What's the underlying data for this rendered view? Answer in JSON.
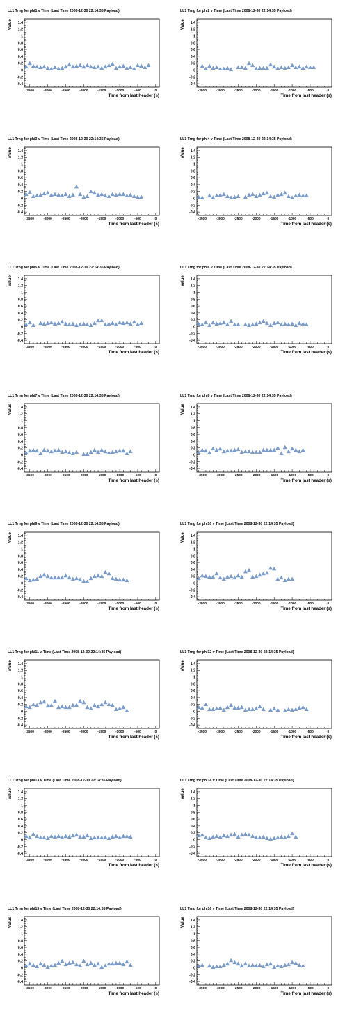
{
  "common": {
    "ylabel": "Value",
    "xlabel": "Time from last header (s)",
    "xticks": [
      -3500,
      -3000,
      -2500,
      -2000,
      -1500,
      -1000,
      -500,
      0
    ],
    "xtick_labels": [
      "-3500",
      "-3000",
      "-2500",
      "-2000",
      "-1500",
      "-1000",
      "-500",
      "0"
    ],
    "yticks": [
      -0.4,
      -0.2,
      0,
      0.2,
      0.4,
      0.6,
      0.8,
      1,
      1.2,
      1.4
    ],
    "ytick_labels": [
      "-0.4",
      "-0.2",
      "0",
      "0.2",
      "0.4",
      "0.6",
      "0.8",
      "1",
      "1.2",
      "1.4"
    ],
    "xlim": [
      -3650,
      100
    ],
    "ylim": [
      -0.5,
      1.5
    ],
    "marker_color": "#7b9cc8"
  },
  "x": [
    -3600,
    -3500,
    -3400,
    -3300,
    -3200,
    -3100,
    -3000,
    -2900,
    -2800,
    -2700,
    -2600,
    -2500,
    -2400,
    -2300,
    -2200,
    -2100,
    -2000,
    -1900,
    -1800,
    -1700,
    -1600,
    -1500,
    -1400,
    -1300,
    -1200,
    -1100,
    -1000,
    -900,
    -800,
    -700,
    -600,
    -500,
    -400,
    -300,
    -200,
    -100,
    0
  ],
  "chart_data": [
    {
      "type": "scatter",
      "title": "LL1 Trng for phi1 v Time (Last Time 2008-12-30 22:14:35 Payload)",
      "values": [
        0.1,
        0.2,
        0.12,
        0.1,
        0.08,
        0.1,
        0.06,
        0.04,
        0.08,
        0.04,
        0.06,
        0.1,
        0.16,
        0.1,
        0.12,
        0.14,
        0.1,
        0.14,
        0.1,
        0.08,
        0.1,
        0.06,
        0.1,
        0.14,
        0.18,
        0.06,
        0.1,
        0.12,
        0.06,
        0.08,
        0.04,
        0.14,
        0.12,
        0.08,
        0.14,
        null,
        null
      ]
    },
    {
      "type": "scatter",
      "title": "LL1 Trng for phi2 v Time (Last Time 2008-12-30 22:14:35 Payload)",
      "values": [
        null,
        0.12,
        0.04,
        0.12,
        0.06,
        0.08,
        0.04,
        0.04,
        0.06,
        0.02,
        null,
        0.08,
        0.08,
        0.06,
        0.2,
        0.14,
        0.04,
        0.06,
        0.06,
        0.06,
        0.16,
        0.1,
        0.06,
        0.08,
        0.06,
        0.08,
        0.14,
        0.08,
        0.1,
        0.06,
        0.1,
        0.08,
        0.08,
        null,
        null,
        null,
        null
      ]
    },
    {
      "type": "scatter",
      "title": "LL1 Trng for phi3 v Time (Last Time 2008-12-30 22:14:35 Payload)",
      "values": [
        0.12,
        0.18,
        0.06,
        0.08,
        0.1,
        0.14,
        0.16,
        0.1,
        0.12,
        0.1,
        0.08,
        0.12,
        0.06,
        0.1,
        0.34,
        0.12,
        0.04,
        0.06,
        0.2,
        0.16,
        0.1,
        0.12,
        0.08,
        0.06,
        0.12,
        0.1,
        0.12,
        0.12,
        0.08,
        0.1,
        0.06,
        0.04,
        0.04,
        null,
        null,
        null,
        null
      ]
    },
    {
      "type": "scatter",
      "title": "LL1 Trng for phi4 v Time (Last Time 2008-12-30 22:14:35 Payload)",
      "values": [
        0.04,
        0.02,
        null,
        0.08,
        0.02,
        0.08,
        0.1,
        0.12,
        0.06,
        0.02,
        0.04,
        0.06,
        null,
        0.04,
        0.1,
        0.12,
        0.06,
        0.1,
        0.14,
        0.16,
        0.06,
        0.04,
        0.1,
        0.12,
        0.16,
        0.06,
        0.02,
        0.08,
        0.1,
        0.08,
        0.08,
        null,
        null,
        null,
        null,
        null,
        null
      ]
    },
    {
      "type": "scatter",
      "title": "LL1 Trng for phi5 v Time (Last Time 2008-12-30 22:14:35 Payload)",
      "values": [
        0.06,
        0.12,
        0.04,
        null,
        0.1,
        0.08,
        0.1,
        0.12,
        0.08,
        0.1,
        0.14,
        0.08,
        0.06,
        0.08,
        0.04,
        0.06,
        0.08,
        0.06,
        0.04,
        0.1,
        0.18,
        0.18,
        0.06,
        0.08,
        0.1,
        0.06,
        0.12,
        0.1,
        0.12,
        0.08,
        0.14,
        0.06,
        0.1,
        null,
        null,
        null,
        null
      ]
    },
    {
      "type": "scatter",
      "title": "LL1 Trng for phi6 v Time (Last Time 2008-12-30 22:14:35 Payload)",
      "values": [
        0.08,
        0.06,
        0.12,
        0.04,
        0.12,
        0.08,
        0.1,
        0.12,
        0.06,
        0.16,
        0.06,
        0.06,
        null,
        0.06,
        0.04,
        0.06,
        0.08,
        0.12,
        0.16,
        0.1,
        0.04,
        0.1,
        0.12,
        0.06,
        0.08,
        0.06,
        0.08,
        0.04,
        0.1,
        0.08,
        0.06,
        null,
        null,
        null,
        null,
        null,
        null
      ]
    },
    {
      "type": "scatter",
      "title": "LL1 Trng for phi7 v Time (Last Time 2008-12-30 22:14:35 Payload)",
      "values": [
        0.06,
        0.12,
        0.14,
        0.12,
        0.04,
        0.14,
        0.12,
        0.1,
        0.12,
        0.14,
        0.08,
        0.1,
        0.06,
        0.04,
        0.08,
        null,
        0.02,
        0.02,
        0.08,
        0.14,
        0.08,
        0.14,
        0.1,
        0.06,
        0.08,
        0.1,
        0.12,
        0.12,
        0.04,
        0.1,
        null,
        null,
        null,
        null,
        null,
        null,
        null
      ]
    },
    {
      "type": "scatter",
      "title": "LL1 Trng for phi8 v Time (Last Time 2008-12-30 22:14:35 Payload)",
      "values": [
        0.08,
        0.14,
        0.12,
        0.06,
        0.18,
        0.14,
        0.18,
        0.1,
        0.12,
        0.12,
        0.14,
        0.16,
        0.08,
        0.1,
        0.1,
        0.08,
        0.08,
        0.08,
        0.14,
        0.14,
        0.14,
        0.14,
        0.2,
        0.04,
        0.22,
        0.1,
        0.18,
        0.14,
        0.1,
        0.14,
        null,
        null,
        null,
        null,
        null,
        null,
        null
      ]
    },
    {
      "type": "scatter",
      "title": "LL1 Trng for phi9 v Time (Last Time 2008-12-30 22:14:35 Payload)",
      "values": [
        0.14,
        0.08,
        0.1,
        0.12,
        0.2,
        0.24,
        0.2,
        0.16,
        0.16,
        0.16,
        0.16,
        0.22,
        0.16,
        0.12,
        0.14,
        0.1,
        0.06,
        0.04,
        0.14,
        0.2,
        0.22,
        0.2,
        0.32,
        0.28,
        0.14,
        0.12,
        0.1,
        0.1,
        0.08,
        null,
        null,
        null,
        null,
        null,
        null,
        null,
        null
      ]
    },
    {
      "type": "scatter",
      "title": "LL1 Trng for phi10 v Time (Last Time 2008-12-30 22:14:35 Payload)",
      "values": [
        0.14,
        0.22,
        0.2,
        0.18,
        0.18,
        0.28,
        0.16,
        0.12,
        0.18,
        0.2,
        0.16,
        0.22,
        0.18,
        0.34,
        0.38,
        0.18,
        0.2,
        0.24,
        0.28,
        0.3,
        0.44,
        0.42,
        0.12,
        0.16,
        0.08,
        0.12,
        0.12,
        null,
        null,
        null,
        null,
        null,
        null,
        null,
        null,
        null,
        null
      ]
    },
    {
      "type": "scatter",
      "title": "LL1 Trng for phi11 v Time (Last Time 2008-12-30 22:14:35 Payload)",
      "values": [
        0.14,
        0.12,
        0.2,
        0.18,
        0.26,
        0.28,
        0.16,
        0.18,
        0.3,
        0.12,
        0.14,
        0.12,
        0.12,
        0.18,
        0.18,
        0.3,
        0.26,
        0.12,
        0.08,
        0.18,
        0.14,
        0.2,
        0.26,
        0.2,
        0.18,
        0.06,
        0.08,
        0.12,
        0.02,
        null,
        null,
        null,
        null,
        null,
        null,
        null,
        null
      ]
    },
    {
      "type": "scatter",
      "title": "LL1 Trng for phi12 v Time (Last Time 2008-12-30 22:14:35 Payload)",
      "values": [
        0.12,
        0.1,
        0.2,
        0.06,
        0.06,
        0.08,
        0.1,
        0.04,
        0.12,
        0.18,
        0.1,
        0.1,
        0.12,
        0.04,
        0.06,
        0.06,
        0.08,
        0.14,
        0.06,
        null,
        0.04,
        0.08,
        0.04,
        null,
        0.02,
        0.06,
        0.04,
        0.06,
        0.1,
        0.12,
        0.06,
        null,
        null,
        null,
        null,
        null,
        null
      ]
    },
    {
      "type": "scatter",
      "title": "LL1 Trng for phi13 v Time (Last Time 2008-12-30 22:14:35 Payload)",
      "values": [
        0.1,
        0.06,
        0.16,
        0.1,
        0.06,
        0.06,
        0.04,
        0.1,
        0.08,
        0.1,
        0.06,
        0.1,
        0.08,
        0.12,
        0.14,
        0.08,
        0.08,
        0.12,
        0.04,
        0.06,
        0.06,
        0.06,
        0.06,
        0.04,
        0.08,
        0.1,
        0.06,
        0.1,
        0.1,
        0.08,
        null,
        null,
        null,
        null,
        null,
        null,
        null
      ]
    },
    {
      "type": "scatter",
      "title": "LL1 Trng for phi14 v Time (Last Time 2008-12-30 22:14:35 Payload)",
      "values": [
        0.12,
        0.14,
        0.06,
        0.04,
        0.08,
        0.1,
        0.08,
        0.12,
        0.1,
        0.14,
        0.16,
        0.08,
        0.14,
        0.16,
        0.14,
        0.1,
        0.06,
        0.06,
        0.08,
        0.04,
        0.02,
        0.04,
        0.06,
        0.08,
        0.06,
        0.1,
        0.18,
        0.08,
        null,
        null,
        null,
        null,
        null,
        null,
        null,
        null,
        null
      ]
    },
    {
      "type": "scatter",
      "title": "LL1 Trng for phi15 v Time (Last Time 2008-12-30 22:14:35 Payload)",
      "values": [
        0.06,
        0.12,
        0.08,
        0.04,
        0.12,
        0.08,
        0.02,
        0.06,
        0.08,
        0.14,
        0.2,
        0.1,
        0.14,
        0.16,
        0.1,
        0.06,
        0.2,
        0.1,
        0.14,
        0.08,
        0.12,
        0.02,
        0.06,
        0.12,
        0.12,
        0.14,
        0.14,
        0.1,
        0.18,
        0.08,
        null,
        null,
        null,
        null,
        null,
        null,
        null
      ]
    },
    {
      "type": "scatter",
      "title": "LL1 Trng for phi16 v Time (Last Time 2008-12-30 22:14:35 Payload)",
      "values": [
        0.06,
        0.08,
        null,
        0.06,
        0.02,
        0.04,
        0.04,
        0.08,
        0.12,
        0.22,
        0.16,
        0.12,
        0.06,
        0.12,
        0.06,
        0.08,
        0.06,
        0.08,
        0.04,
        0.1,
        0.12,
        0.02,
        0.06,
        0.04,
        0.08,
        0.1,
        0.16,
        0.14,
        0.08,
        0.06,
        null,
        null,
        null,
        null,
        null,
        null,
        null
      ]
    }
  ]
}
